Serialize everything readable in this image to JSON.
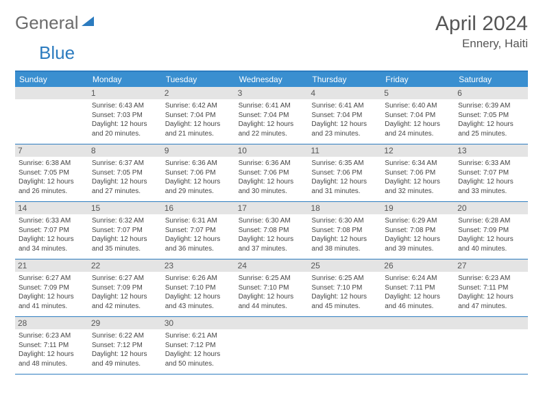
{
  "logo": {
    "general": "General",
    "blue": "Blue"
  },
  "title": "April 2024",
  "location": "Ennery, Haiti",
  "colors": {
    "header_bg": "#3a8fd0",
    "border": "#2b7bbf",
    "daynum_bg": "#e4e4e4",
    "text": "#444444",
    "title_text": "#555555"
  },
  "fonts": {
    "title_size": 30,
    "location_size": 17,
    "dow_size": 12,
    "daynum_size": 12,
    "info_size": 10
  },
  "dow": [
    "Sunday",
    "Monday",
    "Tuesday",
    "Wednesday",
    "Thursday",
    "Friday",
    "Saturday"
  ],
  "weeks": [
    [
      null,
      {
        "n": "1",
        "sr": "6:43 AM",
        "ss": "7:03 PM",
        "dl": "12 hours and 20 minutes."
      },
      {
        "n": "2",
        "sr": "6:42 AM",
        "ss": "7:04 PM",
        "dl": "12 hours and 21 minutes."
      },
      {
        "n": "3",
        "sr": "6:41 AM",
        "ss": "7:04 PM",
        "dl": "12 hours and 22 minutes."
      },
      {
        "n": "4",
        "sr": "6:41 AM",
        "ss": "7:04 PM",
        "dl": "12 hours and 23 minutes."
      },
      {
        "n": "5",
        "sr": "6:40 AM",
        "ss": "7:04 PM",
        "dl": "12 hours and 24 minutes."
      },
      {
        "n": "6",
        "sr": "6:39 AM",
        "ss": "7:05 PM",
        "dl": "12 hours and 25 minutes."
      }
    ],
    [
      {
        "n": "7",
        "sr": "6:38 AM",
        "ss": "7:05 PM",
        "dl": "12 hours and 26 minutes."
      },
      {
        "n": "8",
        "sr": "6:37 AM",
        "ss": "7:05 PM",
        "dl": "12 hours and 27 minutes."
      },
      {
        "n": "9",
        "sr": "6:36 AM",
        "ss": "7:06 PM",
        "dl": "12 hours and 29 minutes."
      },
      {
        "n": "10",
        "sr": "6:36 AM",
        "ss": "7:06 PM",
        "dl": "12 hours and 30 minutes."
      },
      {
        "n": "11",
        "sr": "6:35 AM",
        "ss": "7:06 PM",
        "dl": "12 hours and 31 minutes."
      },
      {
        "n": "12",
        "sr": "6:34 AM",
        "ss": "7:06 PM",
        "dl": "12 hours and 32 minutes."
      },
      {
        "n": "13",
        "sr": "6:33 AM",
        "ss": "7:07 PM",
        "dl": "12 hours and 33 minutes."
      }
    ],
    [
      {
        "n": "14",
        "sr": "6:33 AM",
        "ss": "7:07 PM",
        "dl": "12 hours and 34 minutes."
      },
      {
        "n": "15",
        "sr": "6:32 AM",
        "ss": "7:07 PM",
        "dl": "12 hours and 35 minutes."
      },
      {
        "n": "16",
        "sr": "6:31 AM",
        "ss": "7:07 PM",
        "dl": "12 hours and 36 minutes."
      },
      {
        "n": "17",
        "sr": "6:30 AM",
        "ss": "7:08 PM",
        "dl": "12 hours and 37 minutes."
      },
      {
        "n": "18",
        "sr": "6:30 AM",
        "ss": "7:08 PM",
        "dl": "12 hours and 38 minutes."
      },
      {
        "n": "19",
        "sr": "6:29 AM",
        "ss": "7:08 PM",
        "dl": "12 hours and 39 minutes."
      },
      {
        "n": "20",
        "sr": "6:28 AM",
        "ss": "7:09 PM",
        "dl": "12 hours and 40 minutes."
      }
    ],
    [
      {
        "n": "21",
        "sr": "6:27 AM",
        "ss": "7:09 PM",
        "dl": "12 hours and 41 minutes."
      },
      {
        "n": "22",
        "sr": "6:27 AM",
        "ss": "7:09 PM",
        "dl": "12 hours and 42 minutes."
      },
      {
        "n": "23",
        "sr": "6:26 AM",
        "ss": "7:10 PM",
        "dl": "12 hours and 43 minutes."
      },
      {
        "n": "24",
        "sr": "6:25 AM",
        "ss": "7:10 PM",
        "dl": "12 hours and 44 minutes."
      },
      {
        "n": "25",
        "sr": "6:25 AM",
        "ss": "7:10 PM",
        "dl": "12 hours and 45 minutes."
      },
      {
        "n": "26",
        "sr": "6:24 AM",
        "ss": "7:11 PM",
        "dl": "12 hours and 46 minutes."
      },
      {
        "n": "27",
        "sr": "6:23 AM",
        "ss": "7:11 PM",
        "dl": "12 hours and 47 minutes."
      }
    ],
    [
      {
        "n": "28",
        "sr": "6:23 AM",
        "ss": "7:11 PM",
        "dl": "12 hours and 48 minutes."
      },
      {
        "n": "29",
        "sr": "6:22 AM",
        "ss": "7:12 PM",
        "dl": "12 hours and 49 minutes."
      },
      {
        "n": "30",
        "sr": "6:21 AM",
        "ss": "7:12 PM",
        "dl": "12 hours and 50 minutes."
      },
      null,
      null,
      null,
      null
    ]
  ],
  "labels": {
    "sunrise": "Sunrise:",
    "sunset": "Sunset:",
    "daylight": "Daylight:"
  }
}
